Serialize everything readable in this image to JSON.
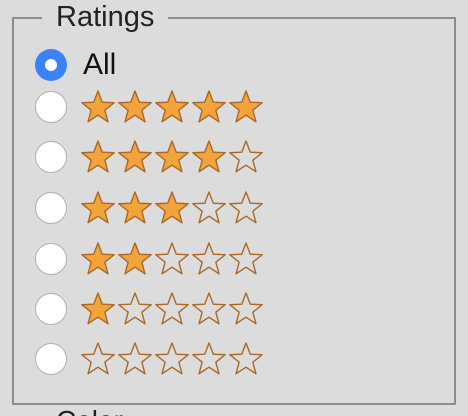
{
  "ratings": {
    "legend": "Ratings",
    "options": [
      {
        "label": "All",
        "selected": true
      },
      {
        "stars": 5,
        "selected": false
      },
      {
        "stars": 4,
        "selected": false
      },
      {
        "stars": 3,
        "selected": false
      },
      {
        "stars": 2,
        "selected": false
      },
      {
        "stars": 1,
        "selected": false
      },
      {
        "stars": 0,
        "selected": false
      }
    ],
    "max_stars": 5
  },
  "next_section": {
    "legend": "Color"
  },
  "colors": {
    "star_fill": "#f2a33a",
    "star_outline": "#a8692a",
    "radio_selected": "#3b82f6"
  }
}
